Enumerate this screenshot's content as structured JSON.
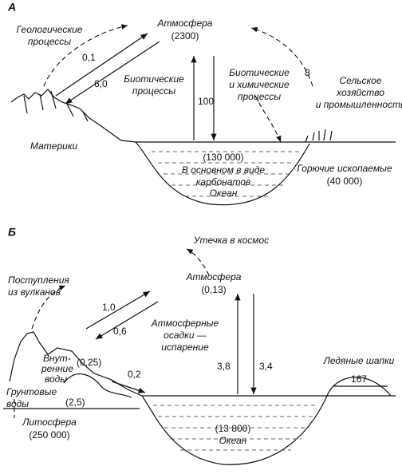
{
  "panel_a": {
    "label": "А",
    "atmosphere": {
      "name": "Атмосфера",
      "amount": "(2300)"
    },
    "geological": [
      "Геологические",
      "процессы"
    ],
    "flux_up": "0,1",
    "flux_down": "6,0",
    "biotic": [
      "Биотические",
      "процессы"
    ],
    "flux_biotic": "100",
    "biochem": [
      "Биотические",
      "и химические",
      "процессы"
    ],
    "flux_industry": "8",
    "industry": [
      "Сельское",
      "хозяйство",
      "и промышленность"
    ],
    "continents": "Материки",
    "ocean": {
      "amount": "(130 000)",
      "note": [
        "В основном в виде",
        "карбонатов"
      ],
      "name": "Океан"
    },
    "fossil": {
      "name": "Горючие ископаемые",
      "amount": "(40 000)"
    }
  },
  "panel_b": {
    "label": "Б",
    "space": "Утечка в космос",
    "atmosphere": {
      "name": "Атмосфера",
      "amount": "(0,13)"
    },
    "volcanoes": [
      "Поступления",
      "из вулканов"
    ],
    "flux_up": "1,0",
    "flux_down": "0,6",
    "precipitation": [
      "Атмосферные",
      "осадки —",
      "испарение"
    ],
    "flux_evap": "3,8",
    "flux_precip": "3,4",
    "inland": {
      "name": [
        "Внут-",
        "ренние",
        "воды"
      ],
      "amount": "(0,25)"
    },
    "flux_runoff": "0,2",
    "ice": {
      "name": "Ледяные шапки",
      "amount": "167"
    },
    "groundwater": {
      "name": [
        "Грунтовые",
        "воды"
      ],
      "amount": "(2,5)"
    },
    "lithosphere": {
      "name": "Литосфера",
      "amount": "(250 000)"
    },
    "ocean": {
      "amount": "(13 800)",
      "name": "Океан"
    }
  }
}
